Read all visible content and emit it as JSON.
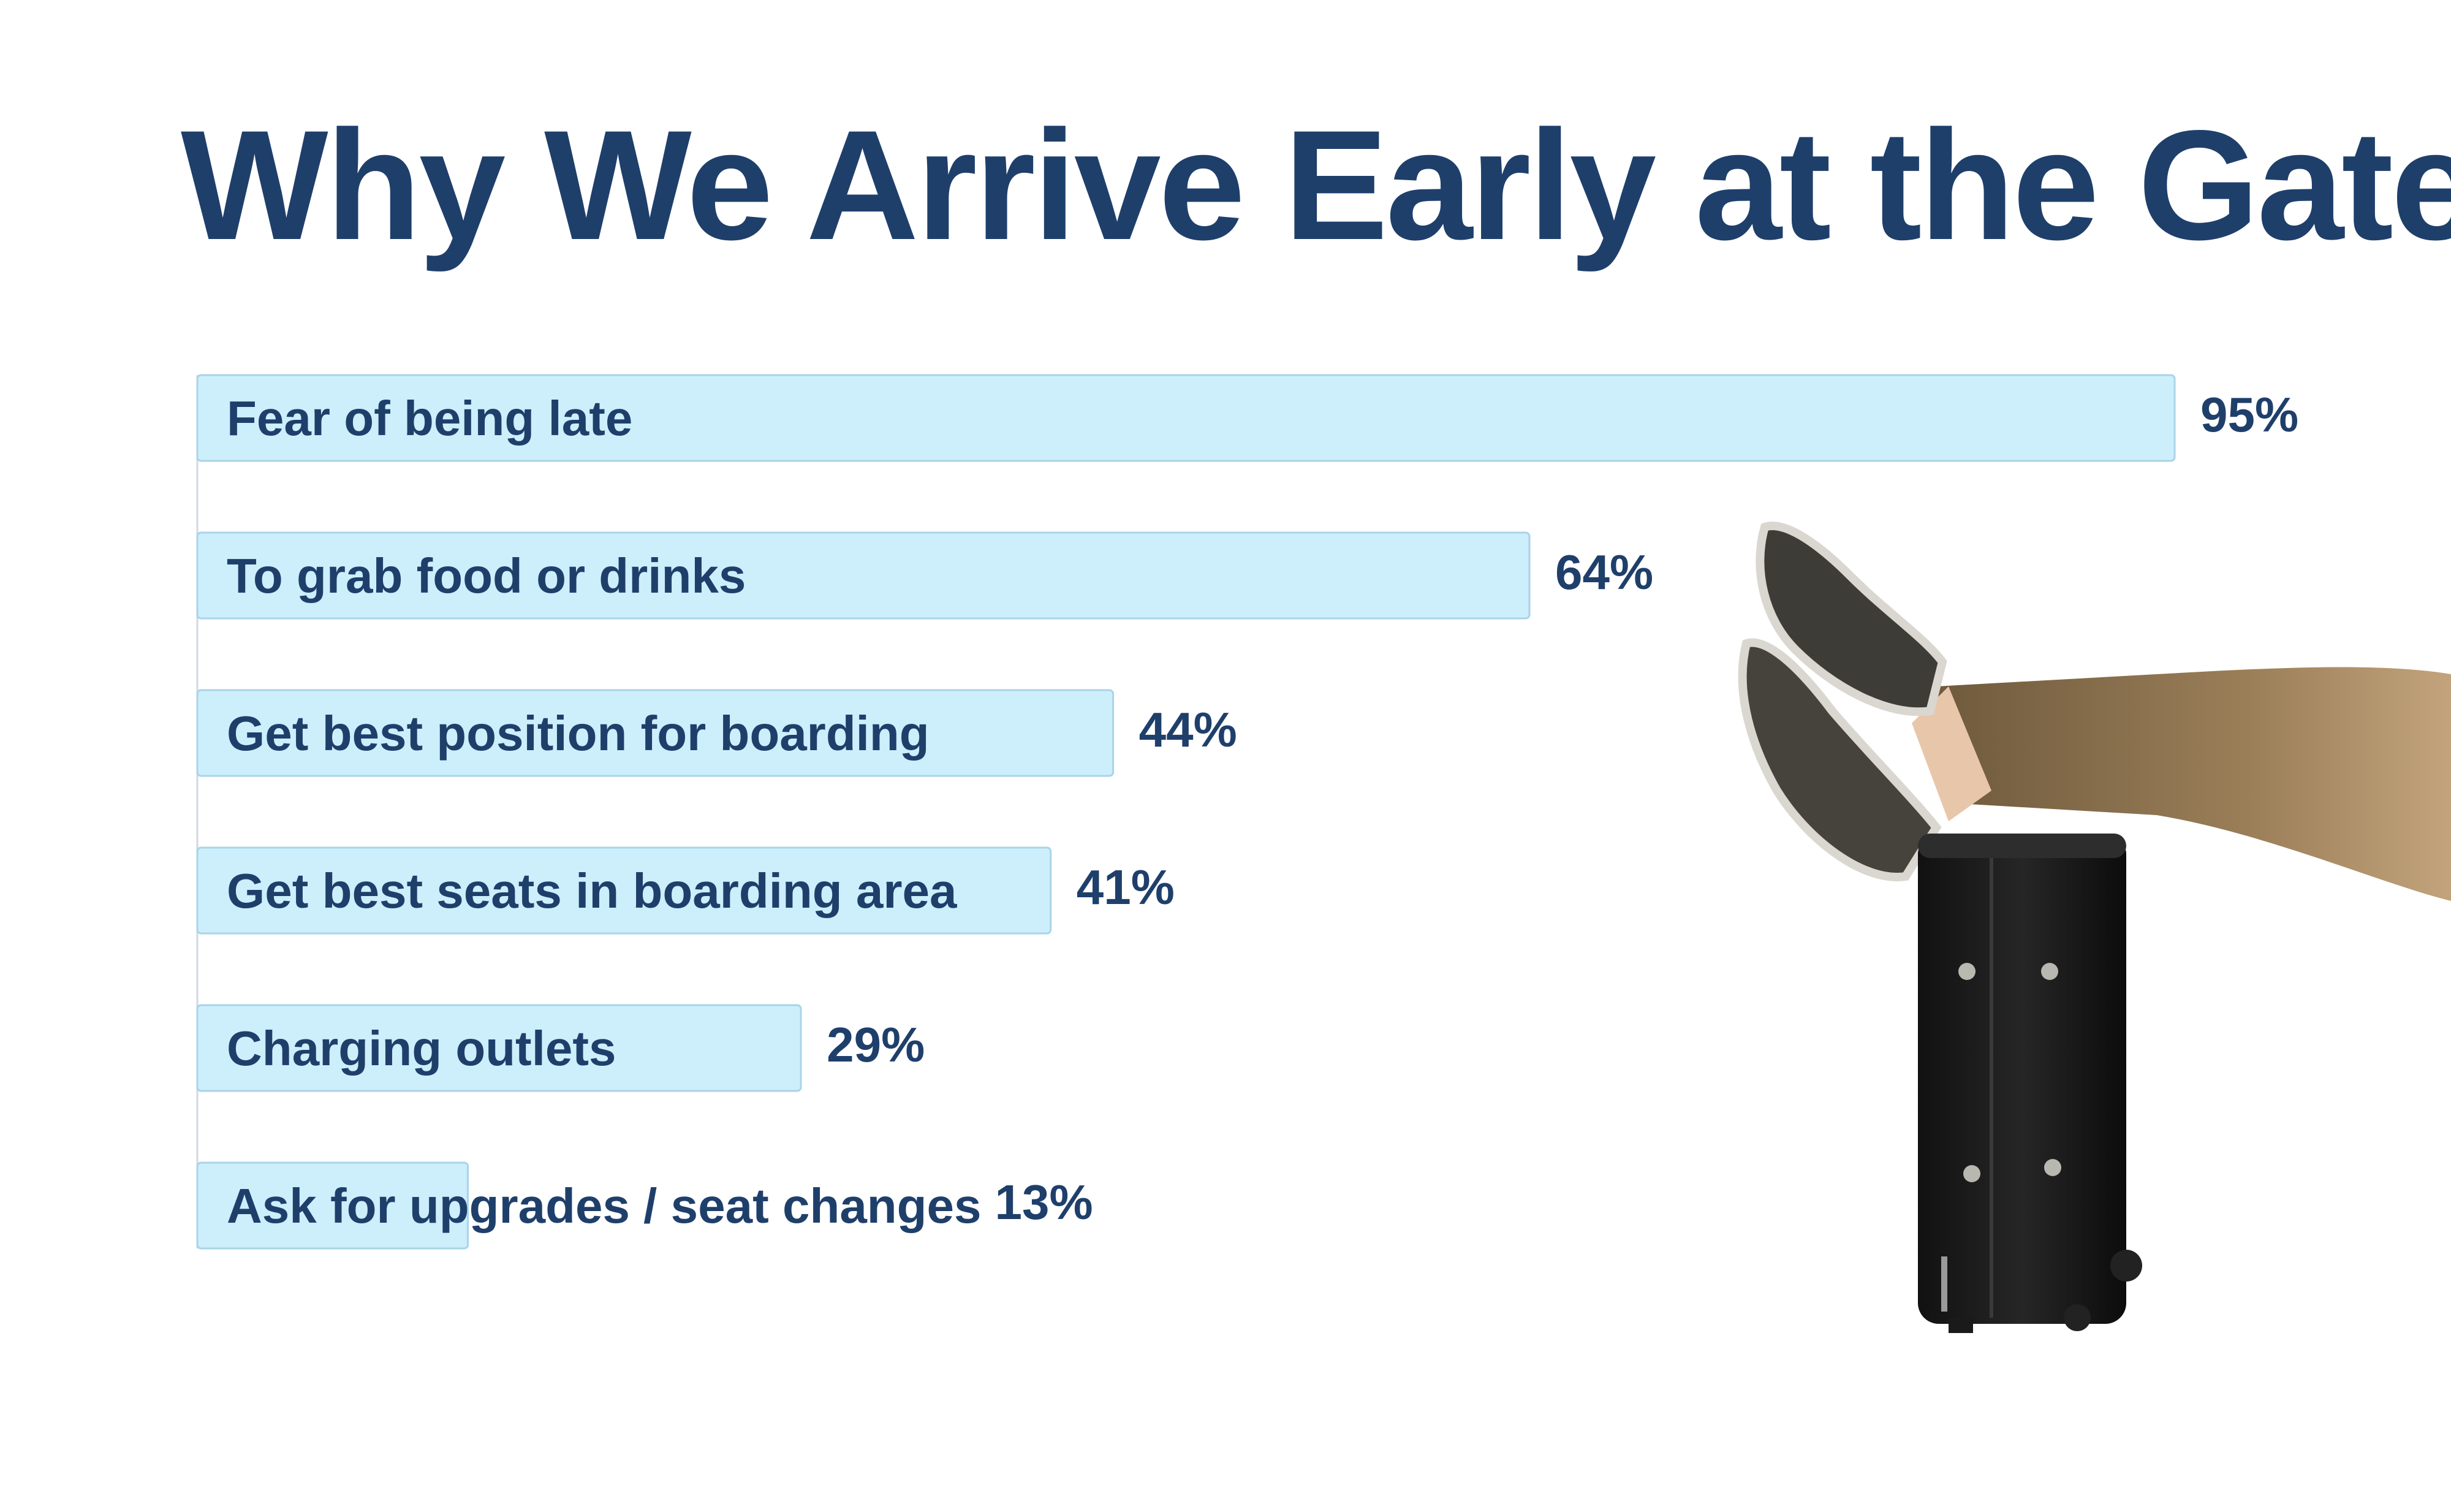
{
  "colors": {
    "title": "#1f3f6b",
    "bar_fill": "#cdeefb",
    "bar_stroke": "#a9d4e8",
    "axis": "#cfd8e3"
  },
  "chart_data": {
    "type": "bar",
    "orientation": "horizontal",
    "title": "Why We Arrive Early at the Gate",
    "categories": [
      "Fear of being late",
      "To grab food or drinks",
      "Get best position for boarding",
      "Get best seats in boarding area",
      "Charging outlets",
      "Ask for upgrades / seat changes"
    ],
    "values": [
      95,
      64,
      44,
      41,
      29,
      13
    ],
    "value_labels": [
      "95%",
      "64%",
      "44%",
      "41%",
      "29%",
      "13%"
    ],
    "unit": "%",
    "xlim": [
      0,
      100
    ],
    "grid": false,
    "legend": "none"
  },
  "illustration": {
    "icon": "suitcase-with-feet-icon"
  }
}
